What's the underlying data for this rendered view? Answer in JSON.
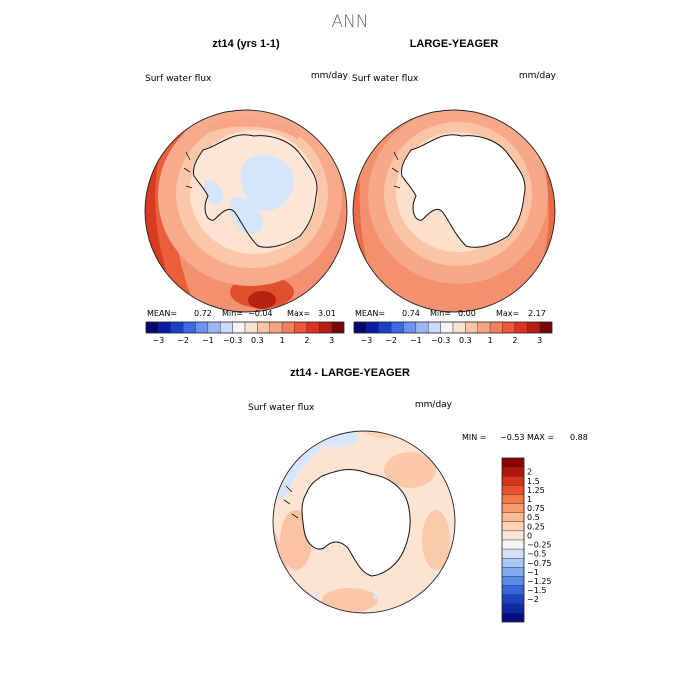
{
  "page": {
    "title": "ANN"
  },
  "panels": [
    {
      "id": "left",
      "header": "zt14 (yrs 1-1)",
      "field_label": "Surf water flux",
      "units": "mm/day",
      "stats": {
        "mean_label": "MEAN=",
        "mean": "0.72",
        "min_label": "Min=",
        "min": "−0.04",
        "max_label": "Max=",
        "max": "3.01"
      }
    },
    {
      "id": "right",
      "header": "LARGE-YEAGER",
      "field_label": "Surf water flux",
      "units": "mm/day",
      "stats": {
        "mean_label": "MEAN=",
        "mean": "0.74",
        "min_label": "Min=",
        "min": "0.00",
        "max_label": "Max=",
        "max": "2.17"
      }
    },
    {
      "id": "diff",
      "header": "zt14 - LARGE-YEAGER",
      "field_label": "Surf water flux",
      "units": "mm/day",
      "stats": {
        "min_label": "MIN =",
        "min": "−0.53",
        "max_label": "MAX =",
        "max": "0.88"
      }
    }
  ],
  "colorbar_top": {
    "colors": [
      "#06066e",
      "#0a1aa0",
      "#1640c8",
      "#3a6ae6",
      "#6a94f0",
      "#9ab8f4",
      "#c8dcf8",
      "#f6f6fa",
      "#fde2cf",
      "#fbc6a8",
      "#f8a482",
      "#f47f5c",
      "#ee5838",
      "#dc321e",
      "#b81e10",
      "#7a0606"
    ],
    "tick_labels": [
      "−3",
      "−2",
      "−1",
      "−0.3",
      "0.3",
      "1",
      "2",
      "3"
    ]
  },
  "colorbar_diff": {
    "colors": [
      "#8b0000",
      "#b4140e",
      "#d8321c",
      "#ee4f2c",
      "#f47848",
      "#f89a6c",
      "#fbb994",
      "#fdd2b6",
      "#fde6d6",
      "#f4f4f8",
      "#d2e2f8",
      "#aac8f4",
      "#84aaf0",
      "#5c8ae8",
      "#3466dc",
      "#1a44c4",
      "#0c2aa8",
      "#060c80"
    ],
    "labels": [
      "2",
      "1.5",
      "1.25",
      "1",
      "0.75",
      "0.5",
      "0.25",
      "0",
      "−0.25",
      "−0.5",
      "−0.75",
      "−1",
      "−1.25",
      "−1.5",
      "−2"
    ]
  }
}
